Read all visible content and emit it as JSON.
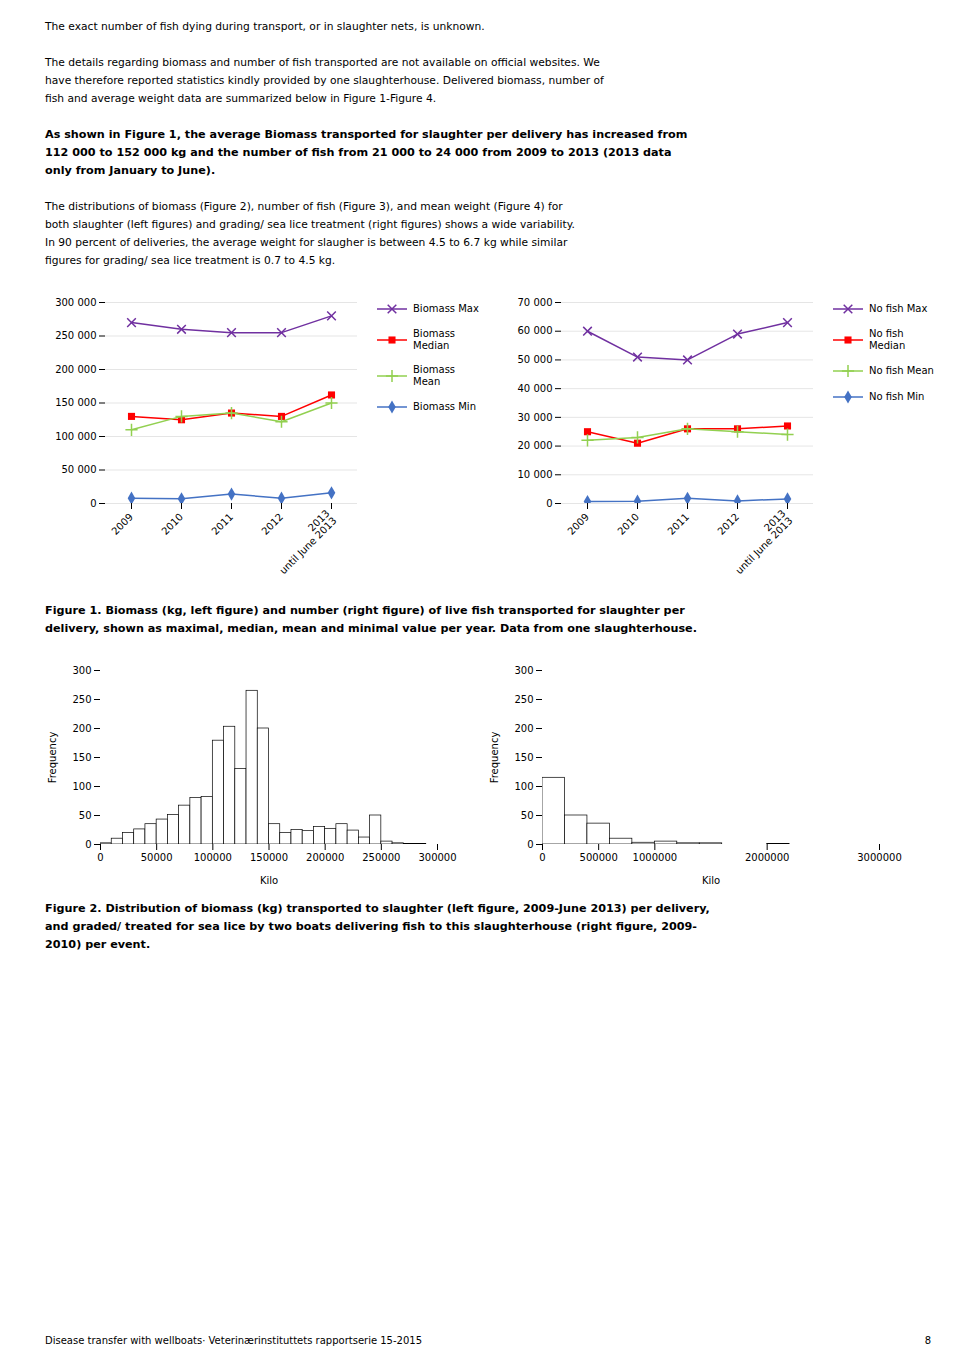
{
  "annotations": [
    [
      "The exact number of fish dying during transport, or in slaughter nets, is unknown."
    ],
    [
      "The details regarding biomass and number of fish transported are not available on official websites. We",
      "have therefore reported statistics kindly provided by one slaughterhouse. Delivered biomass, number of",
      "fish and average weight data are summarized below in Figure 1-Figure 4."
    ],
    [
      "As shown in Figure 1, the average Biomass transported for slaughter per delivery has increased from",
      "112 000 to 152 000 kg and the number of fish from 21 000 to 24 000 from 2009 to 2013 (2013 data",
      "only from January to June)."
    ],
    [
      "The distributions of biomass (Figure 2), number of fish (Figure 3), and mean weight (Figure 4) for",
      "both slaughter (left figures) and grading/ sea lice treatment (right figures) shows a wide variability.",
      "In 90 percent of deliveries, the average weight for slaugher is between 4.5 to 6.7 kg while similar",
      "figures for grading/ sea lice treatment is 0.7 to 4.5 kg."
    ],
    [
      "Figure 1. Biomass (kg, left figure) and number (right figure) of live fish transported for slaughter per",
      "delivery, shown as maximal, median, mean and minimal value per year. Data from one slaughterhouse."
    ],
    [
      "Figure 2. Distribution of biomass (kg) transported to slaughter (left figure, 2009-June 2013) per delivery,",
      "and graded/ treated for sea lice by two boats delivering fish to this slaughterhouse (right figure, 2009-",
      "2010) per event."
    ],
    [
      "Disease transfer with wellboats· Veterinærinstituttets rapportserie 15-2015"
    ],
    [
      "8"
    ]
  ],
  "chart_data": [
    {
      "type": "line",
      "categories": [
        "2009",
        "2010",
        "2011",
        "2012",
        "2013\nuntil June 2013"
      ],
      "series": [
        {
          "name": "Biomass Max",
          "color": "#7030A0",
          "marker": "x",
          "values": [
            270000,
            260000,
            255000,
            255000,
            280000
          ]
        },
        {
          "name": "Biomass\nMedian",
          "color": "#FF0000",
          "marker": "square",
          "values": [
            130000,
            125000,
            135000,
            130000,
            162000
          ]
        },
        {
          "name": "Biomass\nMean",
          "color": "#92D050",
          "marker": "plus",
          "values": [
            110000,
            130000,
            135000,
            122000,
            150000
          ]
        },
        {
          "name": "Biomass Min",
          "color": "#4472C4",
          "marker": "diamond",
          "values": [
            8000,
            7000,
            14000,
            8000,
            16000
          ]
        }
      ],
      "ylim": [
        0,
        300000
      ],
      "yticks": [
        0,
        {
          "value": 50000,
          "label": "50 000"
        },
        {
          "value": 100000,
          "label": "100 000"
        },
        {
          "value": 150000,
          "label": "150 000"
        },
        {
          "value": 200000,
          "label": "200 000"
        },
        {
          "value": 250000,
          "label": "250 000"
        },
        {
          "value": 300000,
          "label": "300 000"
        }
      ],
      "grid": true,
      "legend": "right"
    },
    {
      "type": "line",
      "categories": [
        "2009",
        "2010",
        "2011",
        "2012",
        "2013\nuntil June 2013"
      ],
      "series": [
        {
          "name": "No fish Max",
          "color": "#7030A0",
          "marker": "x",
          "values": [
            60000,
            51000,
            50000,
            59000,
            63000
          ]
        },
        {
          "name": "No fish\nMedian",
          "color": "#FF0000",
          "marker": "square",
          "values": [
            25000,
            21000,
            26000,
            26000,
            27000
          ]
        },
        {
          "name": "No fish Mean",
          "color": "#92D050",
          "marker": "plus",
          "values": [
            22000,
            23000,
            26000,
            25000,
            24000
          ]
        },
        {
          "name": "No fish Min",
          "color": "#4472C4",
          "marker": "diamond",
          "values": [
            700,
            800,
            1800,
            900,
            1600
          ]
        }
      ],
      "ylim": [
        0,
        70000
      ],
      "yticks": [
        0,
        {
          "value": 10000,
          "label": "10 000"
        },
        {
          "value": 20000,
          "label": "20 000"
        },
        {
          "value": 30000,
          "label": "30 000"
        },
        {
          "value": 40000,
          "label": "40 000"
        },
        {
          "value": 50000,
          "label": "50 000"
        },
        {
          "value": 60000,
          "label": "60 000"
        },
        {
          "value": 70000,
          "label": "70 000"
        }
      ],
      "grid": true,
      "legend": "right"
    },
    {
      "type": "histogram",
      "bins": [
        0,
        10000,
        20000,
        30000,
        40000,
        50000,
        60000,
        70000,
        80000,
        90000,
        100000,
        110000,
        120000,
        130000,
        140000,
        150000,
        160000,
        170000,
        180000,
        190000,
        200000,
        210000,
        220000,
        230000,
        240000,
        250000,
        260000,
        270000,
        280000,
        290000,
        300000
      ],
      "values": [
        2,
        10,
        20,
        26,
        35,
        43,
        51,
        67,
        80,
        82,
        179,
        203,
        130,
        265,
        200,
        35,
        20,
        25,
        23,
        30,
        27,
        35,
        24,
        12,
        50,
        5,
        2,
        1,
        1,
        0
      ],
      "color": "#FFFFFF",
      "xlim": [
        0,
        300000
      ],
      "xticks": [
        0,
        50000,
        100000,
        150000,
        200000,
        250000,
        300000
      ],
      "ylim": [
        0,
        300
      ],
      "yticks": [
        0,
        50,
        100,
        150,
        200,
        250,
        300
      ],
      "xlabel": "Kilo",
      "ylabel": "Frequency",
      "grid": false
    },
    {
      "type": "histogram",
      "bins": [
        0,
        200000,
        400000,
        600000,
        800000,
        1000000,
        1200000,
        1400000,
        1600000,
        1800000,
        2000000,
        2200000,
        2400000,
        2600000,
        2800000,
        3000000
      ],
      "values": [
        115,
        50,
        36,
        10,
        3,
        5,
        2,
        2,
        0,
        0,
        1,
        0,
        0,
        0,
        0
      ],
      "color": "#FFFFFF",
      "xlim": [
        0,
        3000000
      ],
      "xticks": [
        0,
        500000,
        1000000,
        2000000,
        3000000
      ],
      "ylim": [
        0,
        300
      ],
      "yticks": [
        0,
        50,
        100,
        150,
        200,
        250,
        300
      ],
      "xlabel": "Kilo",
      "ylabel": "Frequency",
      "grid": false
    }
  ]
}
